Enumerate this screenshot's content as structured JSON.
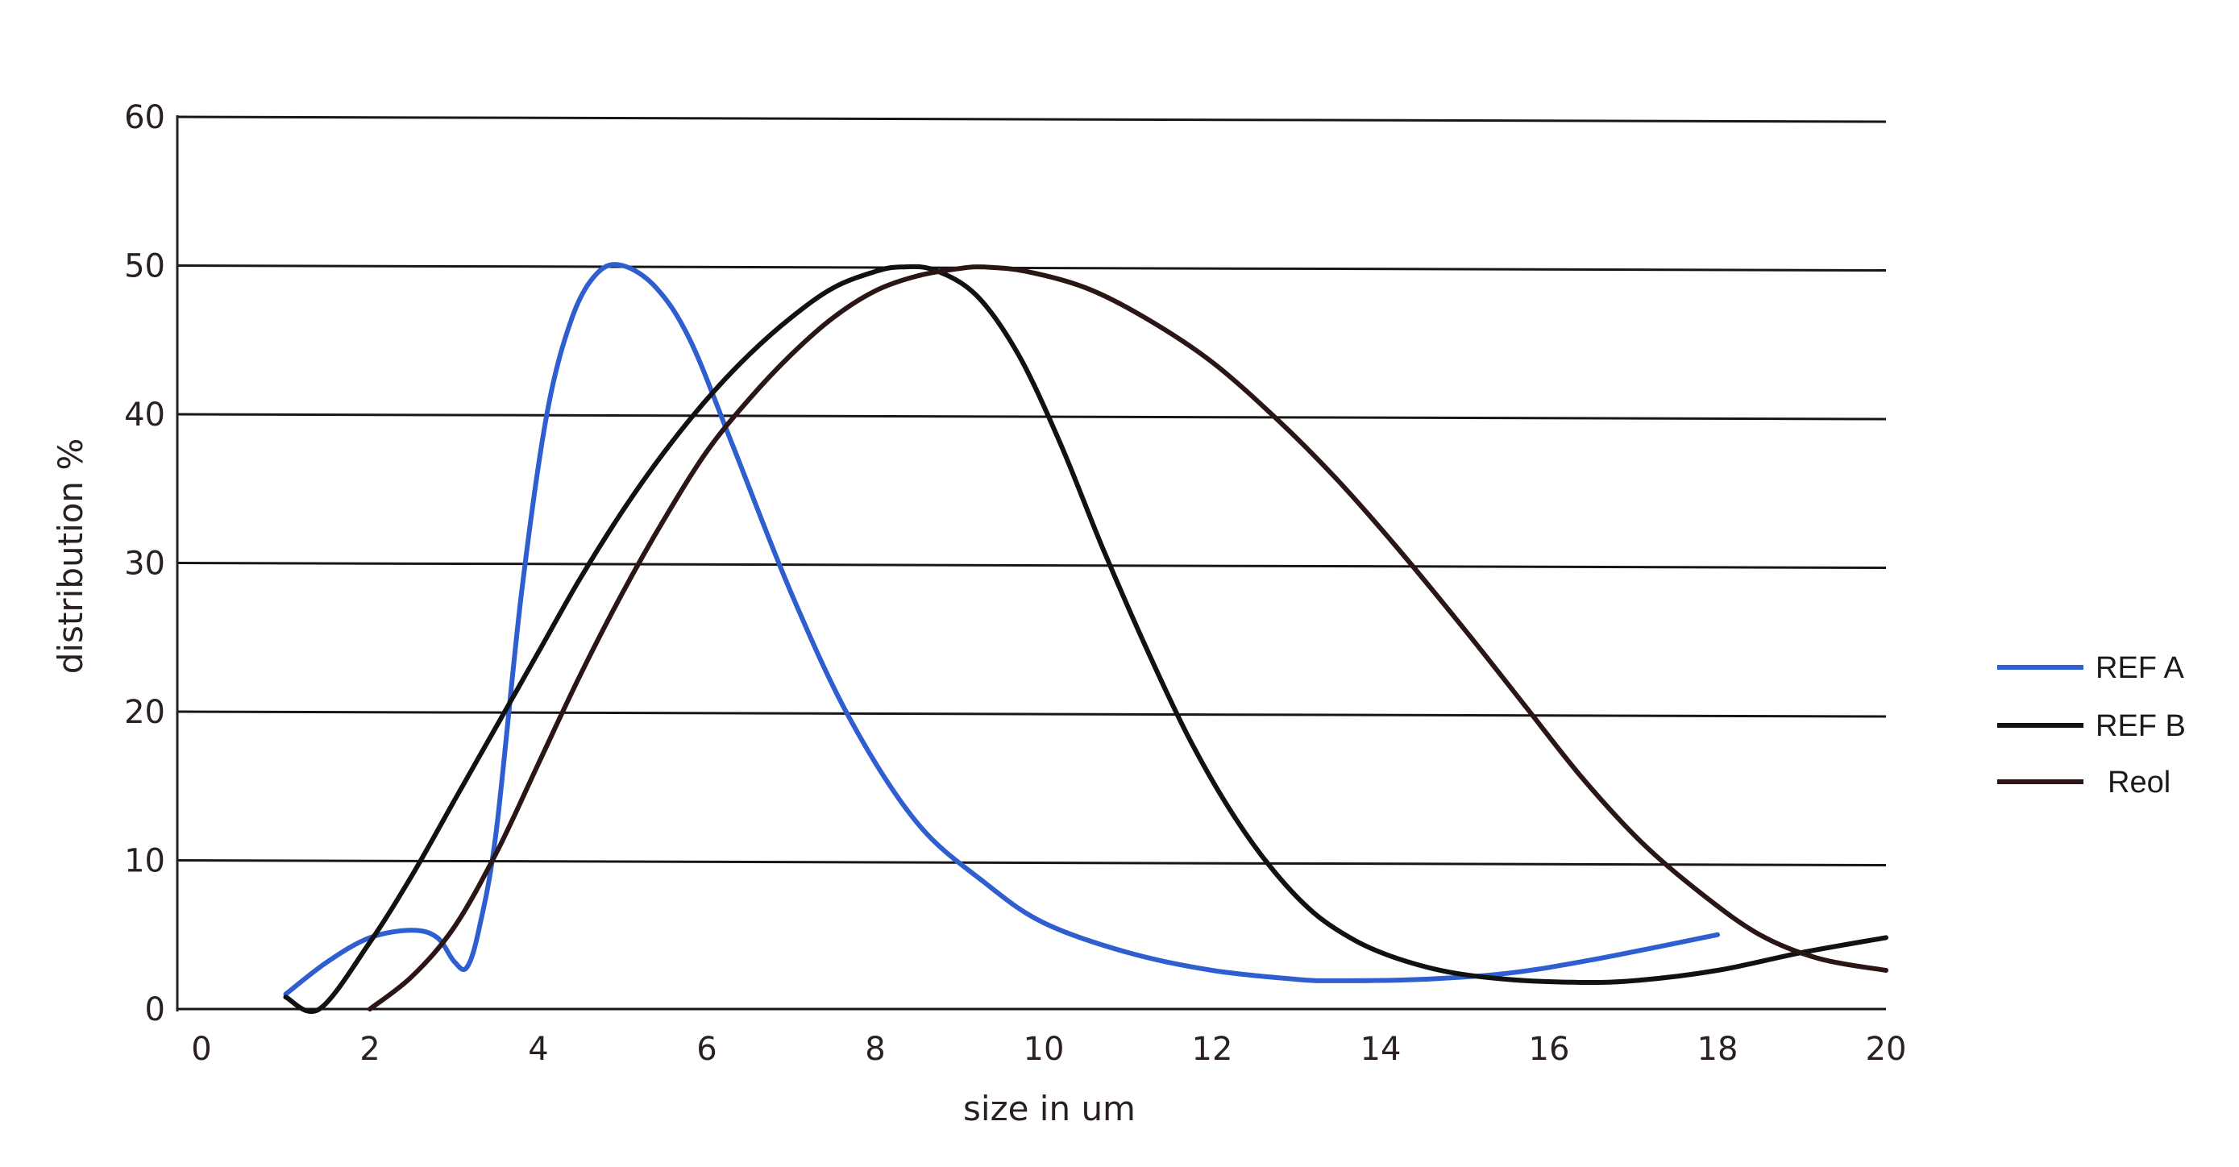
{
  "chart_data": {
    "type": "line",
    "title": "",
    "xlabel": "size in um",
    "ylabel": "distribution %",
    "xlim": [
      0,
      20
    ],
    "ylim": [
      0,
      60
    ],
    "x_ticks": [
      0,
      2,
      4,
      6,
      8,
      10,
      12,
      14,
      16,
      18,
      20
    ],
    "y_ticks": [
      0,
      10,
      20,
      30,
      40,
      50,
      60
    ],
    "grid": "horizontal",
    "legend_position": "right",
    "series": [
      {
        "name": "REF A",
        "color": "#2f5fcf",
        "points": [
          [
            1.0,
            1.0
          ],
          [
            1.5,
            3.2
          ],
          [
            2.0,
            4.8
          ],
          [
            2.5,
            5.3
          ],
          [
            2.8,
            4.8
          ],
          [
            3.0,
            3.2
          ],
          [
            3.15,
            2.8
          ],
          [
            3.3,
            5.5
          ],
          [
            3.5,
            12
          ],
          [
            3.8,
            28
          ],
          [
            4.1,
            40
          ],
          [
            4.4,
            46.5
          ],
          [
            4.7,
            49.5
          ],
          [
            5.0,
            50.0
          ],
          [
            5.4,
            48.5
          ],
          [
            5.8,
            45
          ],
          [
            6.3,
            38
          ],
          [
            7.0,
            28
          ],
          [
            7.7,
            19.5
          ],
          [
            8.5,
            12.5
          ],
          [
            9.3,
            8.5
          ],
          [
            10.0,
            5.8
          ],
          [
            11.0,
            3.8
          ],
          [
            12.0,
            2.6
          ],
          [
            13.0,
            2.0
          ],
          [
            13.5,
            1.9
          ],
          [
            14.5,
            2.0
          ],
          [
            15.5,
            2.4
          ],
          [
            16.5,
            3.3
          ],
          [
            18.0,
            5.0
          ]
        ]
      },
      {
        "name": "REF B",
        "color": "#111111",
        "points": [
          [
            1.0,
            0.8
          ],
          [
            1.4,
            0.0
          ],
          [
            2.0,
            4.5
          ],
          [
            2.5,
            9
          ],
          [
            3.0,
            14
          ],
          [
            3.5,
            19
          ],
          [
            4.0,
            24
          ],
          [
            4.5,
            29
          ],
          [
            5.0,
            33.5
          ],
          [
            5.5,
            37.5
          ],
          [
            6.0,
            41
          ],
          [
            6.5,
            44
          ],
          [
            7.0,
            46.5
          ],
          [
            7.5,
            48.5
          ],
          [
            8.0,
            49.6
          ],
          [
            8.3,
            49.9
          ],
          [
            8.7,
            49.7
          ],
          [
            9.2,
            48
          ],
          [
            9.7,
            44
          ],
          [
            10.2,
            38
          ],
          [
            10.7,
            31
          ],
          [
            11.2,
            24.5
          ],
          [
            11.7,
            18.5
          ],
          [
            12.2,
            13.5
          ],
          [
            12.7,
            9.5
          ],
          [
            13.2,
            6.5
          ],
          [
            13.7,
            4.6
          ],
          [
            14.2,
            3.4
          ],
          [
            14.8,
            2.5
          ],
          [
            15.5,
            2.0
          ],
          [
            16.3,
            1.8
          ],
          [
            17.0,
            1.9
          ],
          [
            18.0,
            2.6
          ],
          [
            19.0,
            3.8
          ],
          [
            20.0,
            4.8
          ]
        ]
      },
      {
        "name": "Reol",
        "color": "#2b1616",
        "points": [
          [
            2.0,
            0.0
          ],
          [
            2.5,
            2.2
          ],
          [
            3.0,
            5.5
          ],
          [
            3.5,
            10.5
          ],
          [
            4.0,
            16.5
          ],
          [
            4.5,
            22.5
          ],
          [
            5.0,
            28
          ],
          [
            5.5,
            33
          ],
          [
            6.0,
            37.5
          ],
          [
            6.5,
            41
          ],
          [
            7.0,
            44
          ],
          [
            7.5,
            46.5
          ],
          [
            8.0,
            48.3
          ],
          [
            8.5,
            49.3
          ],
          [
            9.0,
            49.8
          ],
          [
            9.3,
            49.9
          ],
          [
            9.8,
            49.6
          ],
          [
            10.5,
            48.5
          ],
          [
            11.2,
            46.5
          ],
          [
            12.0,
            43.5
          ],
          [
            12.8,
            39.5
          ],
          [
            13.5,
            35.5
          ],
          [
            14.2,
            31
          ],
          [
            15.0,
            25.5
          ],
          [
            15.7,
            20.5
          ],
          [
            16.4,
            15.5
          ],
          [
            17.1,
            11.2
          ],
          [
            17.8,
            7.8
          ],
          [
            18.5,
            5.0
          ],
          [
            19.2,
            3.4
          ],
          [
            20.0,
            2.6
          ]
        ]
      }
    ],
    "legend_label_colors": {
      "REF A": "#1a1a1a",
      "REF B": "#1a1a1a",
      "Reol": "#e0302f"
    }
  }
}
